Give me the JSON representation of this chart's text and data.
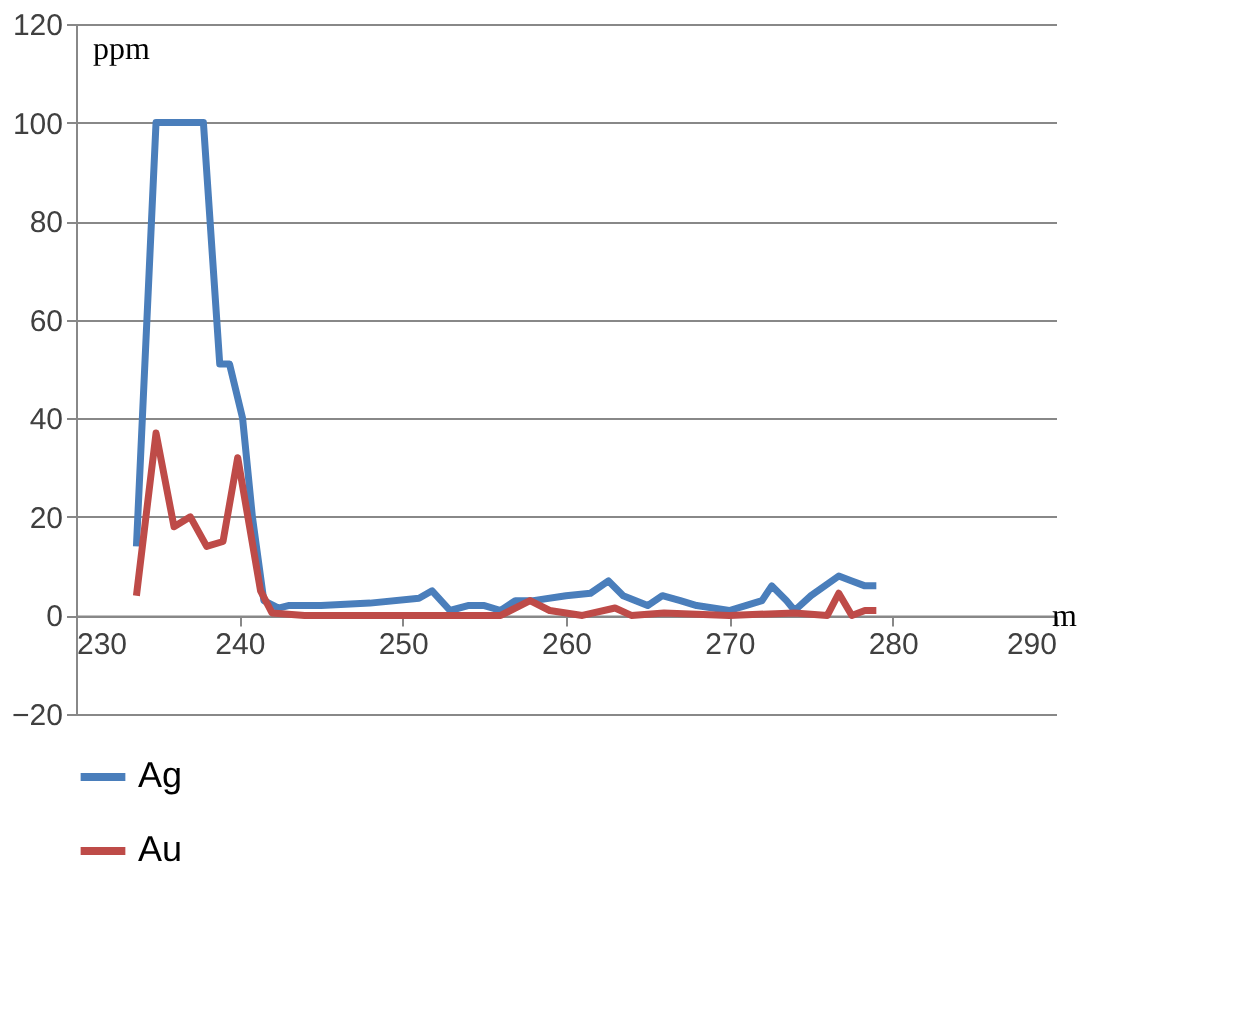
{
  "chart_data": {
    "type": "line",
    "xlabel": "m",
    "ylabel": "ppm",
    "xlim": [
      230,
      290
    ],
    "xticks": [
      230,
      240,
      250,
      260,
      270,
      280,
      290
    ],
    "ylim": [
      -20,
      120
    ],
    "yticks": [
      -20,
      0,
      20,
      40,
      60,
      80,
      100,
      120
    ],
    "grid": "y",
    "legend": "bottom",
    "marker": "none",
    "line_style": "solid",
    "series": [
      {
        "name": "Ag",
        "color": "#4a7ebb",
        "x": [
          233.7,
          234.9,
          235.5,
          236.5,
          237.8,
          238.8,
          239.4,
          240.2,
          240.8,
          241.5,
          242.4,
          243,
          245,
          248,
          251,
          251.8,
          252.9,
          254,
          255,
          256,
          256.9,
          258,
          260,
          261.5,
          262.6,
          263.5,
          265,
          265.9,
          267,
          268,
          270,
          271,
          272,
          272.6,
          273.5,
          274,
          275,
          276.7,
          277.5,
          278.3,
          279
        ],
        "values": [
          14,
          100,
          100,
          100,
          100,
          51,
          51,
          40,
          20,
          3,
          1.5,
          2,
          2,
          2.5,
          3.5,
          5,
          1,
          2,
          2,
          1,
          3,
          3,
          4,
          4.5,
          7,
          4,
          2,
          4,
          3,
          2,
          1,
          2,
          3,
          6,
          3,
          1,
          4,
          8,
          7,
          6,
          6
        ]
      },
      {
        "name": "Au",
        "color": "#be4b48",
        "x": [
          233.7,
          234.9,
          236,
          237,
          238,
          239,
          239.9,
          241.3,
          242,
          244,
          250,
          256,
          257.8,
          259,
          261,
          263,
          264,
          266,
          270,
          274,
          276,
          276.7,
          277.5,
          278.3,
          279
        ],
        "values": [
          4,
          37,
          18,
          20,
          14,
          15,
          32,
          5,
          0.5,
          0,
          0,
          0,
          3,
          1,
          0,
          1.5,
          0,
          0.5,
          0,
          0.5,
          0,
          4.5,
          0,
          1,
          1
        ]
      }
    ]
  }
}
